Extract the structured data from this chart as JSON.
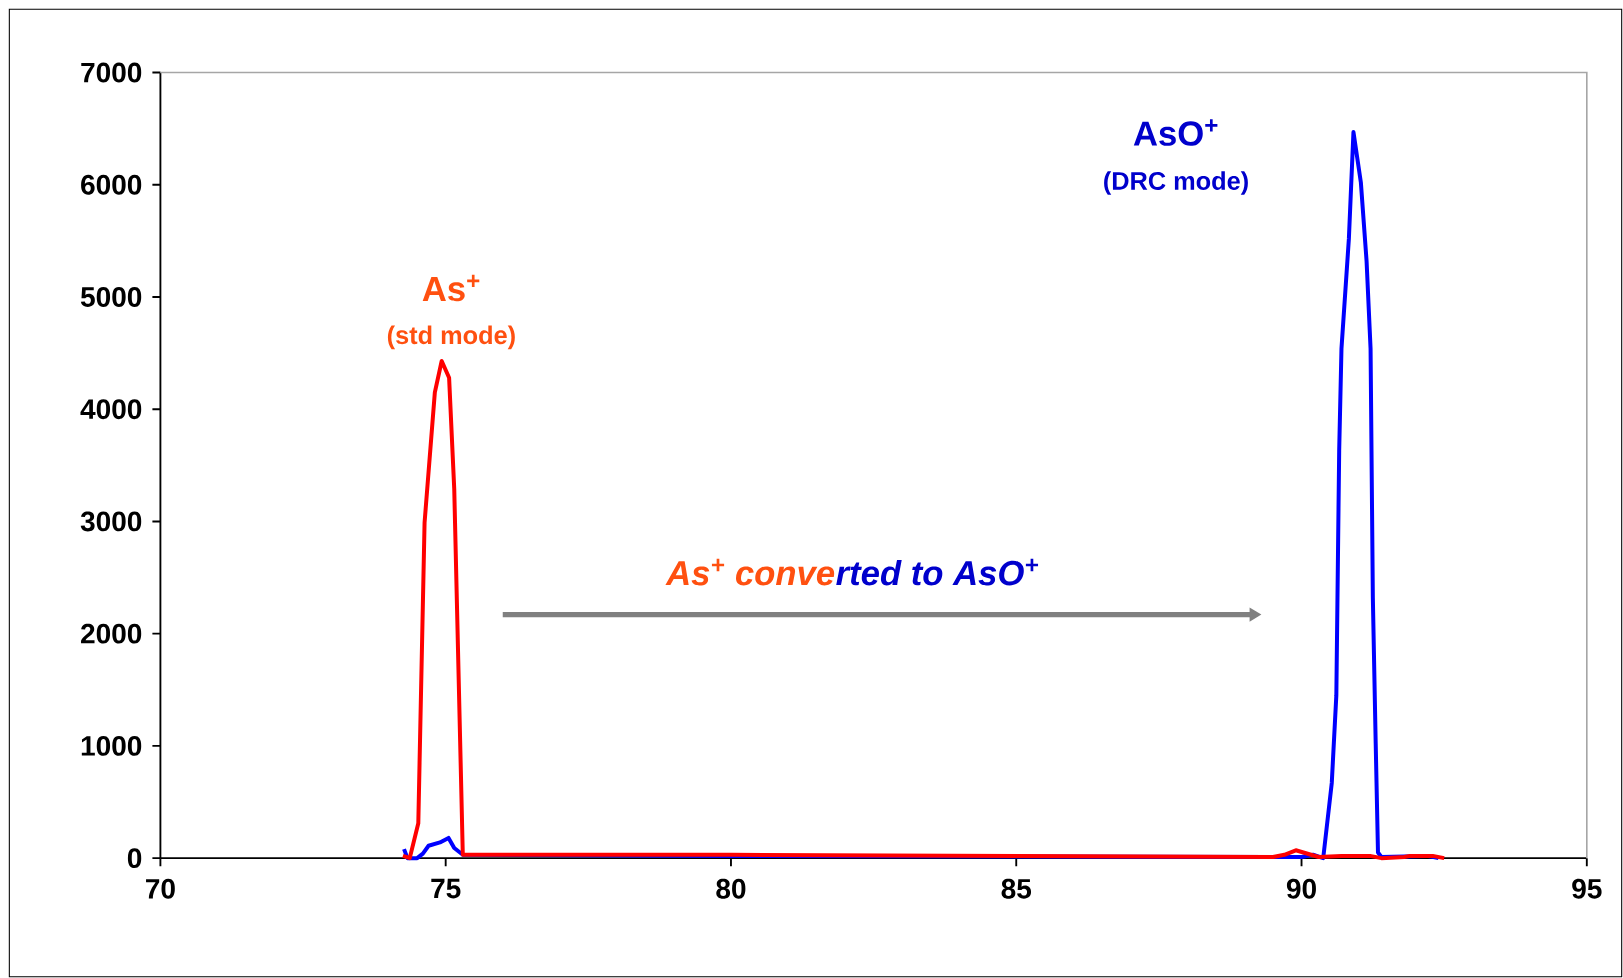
{
  "chart_data": {
    "type": "line",
    "xlim": [
      70,
      95
    ],
    "xticks": [
      70,
      75,
      80,
      85,
      90,
      95
    ],
    "ylim": [
      0,
      7000
    ],
    "yticks": [
      0,
      1000,
      2000,
      3000,
      4000,
      5000,
      6000,
      7000
    ],
    "grid": false,
    "marker": "none",
    "line_style": "solid",
    "series": [
      {
        "color": "#0000ff",
        "x": [
          74.27,
          74.33,
          74.5,
          74.6,
          74.7,
          74.9,
          75.05,
          75.15,
          75.3,
          80,
          85,
          90,
          90.2,
          90.38,
          90.53,
          90.61,
          90.66,
          90.7,
          90.83,
          90.91,
          91.04,
          91.14,
          91.21,
          91.25,
          91.3,
          91.34,
          91.4,
          92.2,
          92.4
        ],
        "values": [
          80,
          0,
          0,
          40,
          110,
          140,
          180,
          90,
          30,
          20,
          null,
          10,
          30,
          0,
          670,
          1450,
          3630,
          4540,
          5520,
          6470,
          6020,
          5320,
          4540,
          2320,
          1020,
          50,
          10,
          20,
          0
        ]
      },
      {
        "color": "#ff0000",
        "x": [
          74.25,
          74.37,
          74.52,
          74.63,
          74.81,
          74.93,
          75.06,
          75.15,
          75.3,
          80,
          85,
          89.5,
          89.7,
          89.9,
          90.1,
          90.3,
          90.7,
          91.2,
          91.4,
          91.8,
          91.9,
          92.3,
          92.5
        ],
        "values": [
          20,
          0,
          310,
          2990,
          4150,
          4430,
          4280,
          3290,
          30,
          30,
          20,
          10,
          30,
          70,
          40,
          10,
          20,
          20,
          0,
          10,
          20,
          20,
          0
        ]
      }
    ],
    "annotations": [
      "As$^{+}$",
      "(std mode)",
      "AsO$^{+}$",
      "(DRC mode)",
      "*As$^{+}$ conve*",
      "*rted  to AsO$^{+}$*"
    ]
  }
}
